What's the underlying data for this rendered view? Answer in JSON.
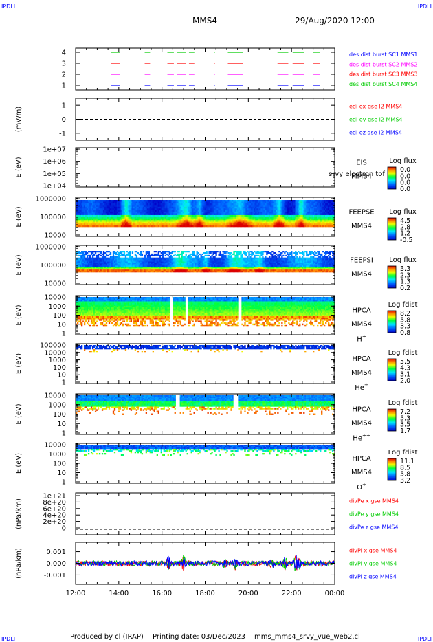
{
  "header": {
    "corner_tl": "IPDLI",
    "corner_tr": "IPDLI",
    "corner_bl": "IPDLI",
    "corner_br": "IPDLI",
    "spacecraft": "MMS4",
    "datetime": "29/Aug/2020 12:00"
  },
  "footer": {
    "produced_by": "Produced by cl (IRAP)",
    "printing_date": "Printing date: 03/Dec/2023",
    "script_name": "mms_mms4_srvy_vue_web2.cl"
  },
  "colors": {
    "blue": "#0000ff",
    "magenta": "#ff00ff",
    "red": "#ff0000",
    "green": "#00cc00"
  },
  "chart_data": [
    {
      "type": "timeline",
      "panel": "burst",
      "yticks": [
        "4",
        "3",
        "2",
        "1"
      ],
      "legend": [
        {
          "label": "des dist burst SC1 MMS1",
          "color": "#0000ff"
        },
        {
          "label": "des dist burst SC2 MMS2",
          "color": "#ff00ff"
        },
        {
          "label": "des dist burst SC3 MMS3",
          "color": "#ff0000"
        },
        {
          "label": "des dist burst SC4 MMS4",
          "color": "#00cc00"
        }
      ],
      "intervals_hours": [
        [
          13.65,
          14.05
        ],
        [
          15.2,
          15.45
        ],
        [
          16.25,
          16.55
        ],
        [
          16.7,
          17.1
        ],
        [
          17.25,
          17.5
        ],
        [
          18.4,
          18.45
        ],
        [
          19.05,
          19.75
        ],
        [
          21.35,
          21.85
        ],
        [
          22.05,
          22.6
        ],
        [
          23.0,
          23.3
        ]
      ]
    },
    {
      "type": "line",
      "panel": "edi",
      "ylabel": "(mV/m)",
      "yticks": [
        "1",
        "0",
        "-1"
      ],
      "ylim": [
        -1.5,
        1.5
      ],
      "legend": [
        {
          "label": "edi ex gse l2 MMS4",
          "color": "#ff0000"
        },
        {
          "label": "edi ey gse l2 MMS4",
          "color": "#00cc00"
        },
        {
          "label": "edi ez gse l2 MMS4",
          "color": "#0000ff"
        }
      ]
    },
    {
      "type": "heatmap",
      "panel": "eis",
      "ylabel": "E (eV)",
      "yticks": [
        "1e+07",
        "1e+06",
        "1e+05",
        "1e+04"
      ],
      "label1": "EIS",
      "label2": "MMS4",
      "overlay": "srvy electron tof",
      "cbar_title": "Log flux",
      "cbar_ticks": [
        "0.0",
        "0.0",
        "0.0",
        "0.0"
      ]
    },
    {
      "type": "heatmap",
      "panel": "feepse",
      "ylabel": "E (eV)",
      "yticks": [
        "1000000",
        "100000",
        "10000"
      ],
      "label1": "FEEPSE",
      "label2": "MMS4",
      "cbar_title": "Log flux",
      "cbar_ticks": [
        "4.5",
        "2.8",
        "1.2",
        "-0.5"
      ]
    },
    {
      "type": "heatmap",
      "panel": "feepsi",
      "ylabel": "E (eV)",
      "yticks": [
        "1000000",
        "100000",
        "10000"
      ],
      "label1": "FEEPSI",
      "label2": "MMS4",
      "cbar_title": "Log flux",
      "cbar_ticks": [
        "3.3",
        "2.3",
        "1.3",
        "0.2"
      ]
    },
    {
      "type": "heatmap",
      "panel": "hpca_h",
      "ylabel": "E (eV)",
      "yticks": [
        "10000",
        "1000",
        "100",
        "10",
        "1"
      ],
      "label1": "HPCA",
      "label2": "MMS4",
      "species": "H",
      "species_charge": "+",
      "cbar_title": "Log fdist",
      "cbar_ticks": [
        "8.2",
        "5.8",
        "3.3",
        "0.8"
      ]
    },
    {
      "type": "heatmap",
      "panel": "hpca_he",
      "ylabel": "E (eV)",
      "yticks": [
        "100000",
        "10000",
        "1000",
        "100",
        "10",
        "1"
      ],
      "label1": "HPCA",
      "label2": "MMS4",
      "species": "He",
      "species_charge": "+",
      "cbar_title": "Log fdist",
      "cbar_ticks": [
        "5.5",
        "4.3",
        "3.1",
        "2.0"
      ]
    },
    {
      "type": "heatmap",
      "panel": "hpca_hepp",
      "ylabel": "E (eV)",
      "yticks": [
        "10000",
        "1000",
        "100",
        "10",
        "1"
      ],
      "label1": "HPCA",
      "label2": "MMS4",
      "species": "He",
      "species_charge": "++",
      "cbar_title": "Log fdist",
      "cbar_ticks": [
        "7.2",
        "5.3",
        "3.5",
        "1.7"
      ]
    },
    {
      "type": "heatmap",
      "panel": "hpca_o",
      "ylabel": "E (eV)",
      "yticks": [
        "10000",
        "1000",
        "100",
        "10",
        "1"
      ],
      "label1": "HPCA",
      "label2": "MMS4",
      "species": "O",
      "species_charge": "+",
      "cbar_title": "Log fdist",
      "cbar_ticks": [
        "11.1",
        "8.5",
        "5.8",
        "3.2"
      ]
    },
    {
      "type": "line",
      "panel": "divpe",
      "ylabel": "(nPa/km)",
      "yticks": [
        "1e+21",
        "8e+20",
        "6e+20",
        "4e+20",
        "2e+20",
        "0"
      ],
      "ylim": [
        0,
        1.05e+21
      ],
      "legend": [
        {
          "label": "divPe x gse MMS4",
          "color": "#ff0000"
        },
        {
          "label": "divPe y gse MMS4",
          "color": "#00cc00"
        },
        {
          "label": "divPe z gse MMS4",
          "color": "#0000ff"
        }
      ]
    },
    {
      "type": "line",
      "panel": "divpi",
      "ylabel": "(nPa/km)",
      "yticks": [
        "0.001",
        "0.000",
        "-0.001"
      ],
      "ylim": [
        -0.0018,
        0.0018
      ],
      "legend": [
        {
          "label": "divPi x gse MMS4",
          "color": "#ff0000"
        },
        {
          "label": "divPi y gse MMS4",
          "color": "#00cc00"
        },
        {
          "label": "divPi z gse MMS4",
          "color": "#0000ff"
        }
      ]
    }
  ],
  "xaxis": {
    "ticks": [
      "12:00",
      "14:00",
      "16:00",
      "18:00",
      "20:00",
      "22:00",
      "00:00"
    ],
    "range_hours": [
      12,
      24
    ]
  }
}
